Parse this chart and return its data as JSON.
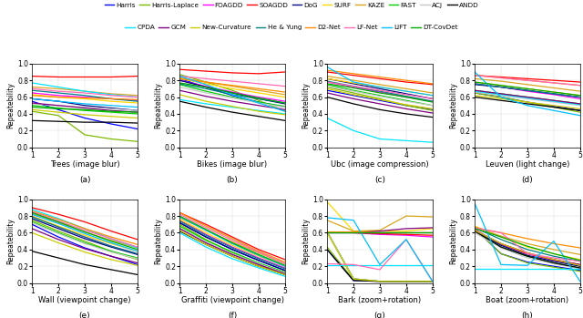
{
  "legend_entries": [
    {
      "label": "Harris",
      "color": "#0000ff",
      "ls": "-"
    },
    {
      "label": "Harris-Laplace",
      "color": "#7cba00",
      "ls": "-"
    },
    {
      "label": "FOAGDD",
      "color": "#ff00ff",
      "ls": "-"
    },
    {
      "label": "SOAGDD",
      "color": "#ff0000",
      "ls": "-"
    },
    {
      "label": "DoG",
      "color": "#000080",
      "ls": "-"
    },
    {
      "label": "SURF",
      "color": "#ffd700",
      "ls": "-"
    },
    {
      "label": "KAZE",
      "color": "#daa520",
      "ls": "-"
    },
    {
      "label": "FAST",
      "color": "#00cc00",
      "ls": "-"
    },
    {
      "label": "ACJ",
      "color": "#c8c8c8",
      "ls": "-"
    },
    {
      "label": "ANDD",
      "color": "#000000",
      "ls": "-"
    },
    {
      "label": "CPDA",
      "color": "#00e5ff",
      "ls": "-"
    },
    {
      "label": "GCM",
      "color": "#800080",
      "ls": "-"
    },
    {
      "label": "New-Curvature",
      "color": "#cccc00",
      "ls": "-"
    },
    {
      "label": "He & Yung",
      "color": "#008080",
      "ls": "-"
    },
    {
      "label": "D2-Net",
      "color": "#ff8c00",
      "ls": "-"
    },
    {
      "label": "LF-Net",
      "color": "#ff69b4",
      "ls": "-"
    },
    {
      "label": "LIFT",
      "color": "#00bfff",
      "ls": "-"
    },
    {
      "label": "DT-CovDet",
      "color": "#00aa00",
      "ls": "-"
    }
  ],
  "subplots": [
    {
      "title": "Trees (image blur)",
      "label": "(a)",
      "data": {
        "Harris": [
          0.55,
          0.45,
          0.35,
          0.28,
          0.22
        ],
        "Harris-Laplace": [
          0.43,
          0.38,
          0.15,
          0.1,
          0.07
        ],
        "FOAGDD": [
          0.65,
          0.62,
          0.6,
          0.58,
          0.56
        ],
        "SOAGDD": [
          0.85,
          0.84,
          0.84,
          0.84,
          0.85
        ],
        "DoG": [
          0.58,
          0.55,
          0.5,
          0.47,
          0.44
        ],
        "SURF": [
          0.63,
          0.6,
          0.58,
          0.55,
          0.53
        ],
        "KAZE": [
          0.72,
          0.7,
          0.67,
          0.64,
          0.62
        ],
        "FAST": [
          0.5,
          0.47,
          0.44,
          0.42,
          0.4
        ],
        "ACJ": [
          0.52,
          0.5,
          0.48,
          0.46,
          0.44
        ],
        "ANDD": [
          0.32,
          0.31,
          0.3,
          0.3,
          0.29
        ],
        "CPDA": [
          0.77,
          0.72,
          0.67,
          0.63,
          0.6
        ],
        "GCM": [
          0.53,
          0.5,
          0.47,
          0.44,
          0.42
        ],
        "New-Curvature": [
          0.45,
          0.42,
          0.39,
          0.37,
          0.35
        ],
        "He & Yung": [
          0.68,
          0.65,
          0.62,
          0.58,
          0.55
        ],
        "D2-Net": [
          0.62,
          0.6,
          0.59,
          0.58,
          0.57
        ],
        "LF-Net": [
          0.7,
          0.67,
          0.65,
          0.62,
          0.6
        ],
        "LIFT": [
          0.58,
          0.55,
          0.52,
          0.5,
          0.48
        ],
        "DT-CovDet": [
          0.48,
          0.46,
          0.45,
          0.43,
          0.42
        ]
      }
    },
    {
      "title": "Bikes (image blur)",
      "label": "(b)",
      "data": {
        "Harris": [
          0.82,
          0.72,
          0.62,
          0.54,
          0.48
        ],
        "Harris-Laplace": [
          0.87,
          0.78,
          0.68,
          0.56,
          0.43
        ],
        "FOAGDD": [
          0.8,
          0.73,
          0.66,
          0.6,
          0.55
        ],
        "SOAGDD": [
          0.93,
          0.91,
          0.89,
          0.88,
          0.9
        ],
        "DoG": [
          0.8,
          0.72,
          0.65,
          0.58,
          0.52
        ],
        "SURF": [
          0.82,
          0.76,
          0.7,
          0.65,
          0.6
        ],
        "KAZE": [
          0.83,
          0.78,
          0.73,
          0.68,
          0.63
        ],
        "FAST": [
          0.75,
          0.67,
          0.6,
          0.54,
          0.49
        ],
        "ACJ": [
          0.72,
          0.65,
          0.59,
          0.53,
          0.48
        ],
        "ANDD": [
          0.55,
          0.48,
          0.42,
          0.37,
          0.32
        ],
        "CPDA": [
          0.57,
          0.52,
          0.48,
          0.44,
          0.4
        ],
        "GCM": [
          0.68,
          0.61,
          0.55,
          0.5,
          0.45
        ],
        "New-Curvature": [
          0.63,
          0.55,
          0.49,
          0.43,
          0.39
        ],
        "He & Yung": [
          0.76,
          0.7,
          0.63,
          0.58,
          0.53
        ],
        "D2-Net": [
          0.82,
          0.78,
          0.74,
          0.7,
          0.66
        ],
        "LF-Net": [
          0.85,
          0.82,
          0.79,
          0.76,
          0.73
        ],
        "LIFT": [
          0.85,
          0.75,
          0.63,
          0.53,
          0.43
        ],
        "DT-CovDet": [
          0.77,
          0.72,
          0.65,
          0.59,
          0.53
        ]
      }
    },
    {
      "title": "Ubc (image compression)",
      "label": "(c)",
      "data": {
        "Harris": [
          0.68,
          0.62,
          0.56,
          0.5,
          0.45
        ],
        "Harris-Laplace": [
          0.72,
          0.65,
          0.58,
          0.5,
          0.44
        ],
        "FOAGDD": [
          0.78,
          0.72,
          0.66,
          0.6,
          0.55
        ],
        "SOAGDD": [
          0.9,
          0.86,
          0.82,
          0.78,
          0.75
        ],
        "DoG": [
          0.82,
          0.76,
          0.7,
          0.64,
          0.58
        ],
        "SURF": [
          0.82,
          0.77,
          0.72,
          0.67,
          0.62
        ],
        "KAZE": [
          0.85,
          0.8,
          0.75,
          0.7,
          0.65
        ],
        "FAST": [
          0.75,
          0.68,
          0.62,
          0.56,
          0.5
        ],
        "ACJ": [
          0.73,
          0.67,
          0.61,
          0.55,
          0.5
        ],
        "ANDD": [
          0.6,
          0.52,
          0.45,
          0.4,
          0.36
        ],
        "CPDA": [
          0.35,
          0.2,
          0.1,
          0.08,
          0.06
        ],
        "GCM": [
          0.65,
          0.58,
          0.52,
          0.46,
          0.41
        ],
        "New-Curvature": [
          0.7,
          0.63,
          0.57,
          0.51,
          0.46
        ],
        "He & Yung": [
          0.79,
          0.73,
          0.67,
          0.61,
          0.55
        ],
        "D2-Net": [
          0.92,
          0.88,
          0.84,
          0.8,
          0.76
        ],
        "LF-Net": [
          0.78,
          0.73,
          0.68,
          0.63,
          0.58
        ],
        "LIFT": [
          0.96,
          0.78,
          0.72,
          0.67,
          0.62
        ],
        "DT-CovDet": [
          0.76,
          0.71,
          0.65,
          0.6,
          0.54
        ]
      }
    },
    {
      "title": "Leuven (light change)",
      "label": "(d)",
      "data": {
        "Harris": [
          0.65,
          0.6,
          0.54,
          0.49,
          0.44
        ],
        "Harris-Laplace": [
          0.65,
          0.6,
          0.54,
          0.48,
          0.42
        ],
        "FOAGDD": [
          0.76,
          0.72,
          0.67,
          0.63,
          0.58
        ],
        "SOAGDD": [
          0.86,
          0.84,
          0.82,
          0.8,
          0.78
        ],
        "DoG": [
          0.75,
          0.72,
          0.68,
          0.64,
          0.6
        ],
        "SURF": [
          0.78,
          0.74,
          0.7,
          0.66,
          0.62
        ],
        "KAZE": [
          0.82,
          0.79,
          0.75,
          0.71,
          0.67
        ],
        "FAST": [
          0.68,
          0.64,
          0.6,
          0.56,
          0.52
        ],
        "ACJ": [
          0.66,
          0.62,
          0.58,
          0.54,
          0.5
        ],
        "ANDD": [
          0.6,
          0.56,
          0.52,
          0.48,
          0.44
        ],
        "CPDA": [
          0.67,
          0.63,
          0.59,
          0.55,
          0.51
        ],
        "GCM": [
          0.68,
          0.64,
          0.6,
          0.56,
          0.52
        ],
        "New-Curvature": [
          0.62,
          0.58,
          0.54,
          0.5,
          0.46
        ],
        "He & Yung": [
          0.76,
          0.72,
          0.68,
          0.64,
          0.6
        ],
        "D2-Net": [
          0.86,
          0.83,
          0.8,
          0.77,
          0.74
        ],
        "LF-Net": [
          0.86,
          0.83,
          0.8,
          0.77,
          0.74
        ],
        "LIFT": [
          0.9,
          0.6,
          0.5,
          0.44,
          0.38
        ],
        "DT-CovDet": [
          0.78,
          0.74,
          0.7,
          0.66,
          0.62
        ]
      }
    },
    {
      "title": "Wall (viewpoint change)",
      "label": "(e)",
      "data": {
        "Harris": [
          0.7,
          0.55,
          0.42,
          0.32,
          0.22
        ],
        "Harris-Laplace": [
          0.75,
          0.62,
          0.5,
          0.38,
          0.28
        ],
        "FOAGDD": [
          0.8,
          0.67,
          0.55,
          0.44,
          0.35
        ],
        "SOAGDD": [
          0.9,
          0.82,
          0.73,
          0.62,
          0.52
        ],
        "DoG": [
          0.77,
          0.65,
          0.53,
          0.43,
          0.34
        ],
        "SURF": [
          0.8,
          0.68,
          0.57,
          0.47,
          0.38
        ],
        "KAZE": [
          0.83,
          0.72,
          0.61,
          0.51,
          0.42
        ],
        "FAST": [
          0.73,
          0.6,
          0.48,
          0.38,
          0.3
        ],
        "ACJ": [
          0.72,
          0.59,
          0.47,
          0.37,
          0.29
        ],
        "ANDD": [
          0.38,
          0.3,
          0.22,
          0.16,
          0.1
        ],
        "CPDA": [
          0.88,
          0.77,
          0.65,
          0.53,
          0.42
        ],
        "GCM": [
          0.65,
          0.52,
          0.41,
          0.32,
          0.24
        ],
        "New-Curvature": [
          0.6,
          0.48,
          0.37,
          0.28,
          0.21
        ],
        "He & Yung": [
          0.79,
          0.67,
          0.55,
          0.44,
          0.35
        ],
        "D2-Net": [
          0.86,
          0.76,
          0.65,
          0.55,
          0.46
        ],
        "LF-Net": [
          0.85,
          0.74,
          0.63,
          0.53,
          0.43
        ],
        "LIFT": [
          0.82,
          0.71,
          0.59,
          0.48,
          0.38
        ],
        "DT-CovDet": [
          0.84,
          0.73,
          0.61,
          0.5,
          0.4
        ]
      }
    },
    {
      "title": "Graffiti (viewpoint change)",
      "label": "(f)",
      "data": {
        "Harris": [
          0.72,
          0.55,
          0.4,
          0.27,
          0.15
        ],
        "Harris-Laplace": [
          0.7,
          0.52,
          0.36,
          0.22,
          0.1
        ],
        "FOAGDD": [
          0.75,
          0.58,
          0.43,
          0.3,
          0.18
        ],
        "SOAGDD": [
          0.84,
          0.7,
          0.55,
          0.4,
          0.28
        ],
        "DoG": [
          0.72,
          0.55,
          0.4,
          0.27,
          0.15
        ],
        "SURF": [
          0.76,
          0.6,
          0.45,
          0.32,
          0.2
        ],
        "KAZE": [
          0.78,
          0.63,
          0.49,
          0.36,
          0.23
        ],
        "FAST": [
          0.68,
          0.51,
          0.37,
          0.24,
          0.13
        ],
        "ACJ": [
          0.66,
          0.49,
          0.35,
          0.23,
          0.12
        ],
        "ANDD": [
          0.62,
          0.46,
          0.32,
          0.2,
          0.1
        ],
        "CPDA": [
          0.6,
          0.43,
          0.29,
          0.18,
          0.08
        ],
        "GCM": [
          0.65,
          0.48,
          0.34,
          0.22,
          0.11
        ],
        "New-Curvature": [
          0.63,
          0.46,
          0.32,
          0.2,
          0.1
        ],
        "He & Yung": [
          0.74,
          0.57,
          0.42,
          0.29,
          0.17
        ],
        "D2-Net": [
          0.84,
          0.68,
          0.53,
          0.38,
          0.25
        ],
        "LF-Net": [
          0.82,
          0.66,
          0.51,
          0.37,
          0.23
        ],
        "LIFT": [
          0.79,
          0.63,
          0.47,
          0.33,
          0.2
        ],
        "DT-CovDet": [
          0.8,
          0.64,
          0.48,
          0.34,
          0.21
        ]
      }
    },
    {
      "title": "Bark (zoom+rotation)",
      "label": "(g)",
      "data": {
        "Harris": [
          0.4,
          0.03,
          0.02,
          0.02,
          0.02
        ],
        "Harris-Laplace": [
          0.43,
          0.04,
          0.02,
          0.02,
          0.02
        ],
        "FOAGDD": [
          0.6,
          0.6,
          0.58,
          0.57,
          0.55
        ],
        "SOAGDD": [
          0.61,
          0.6,
          0.59,
          0.58,
          0.57
        ],
        "DoG": [
          0.61,
          0.05,
          0.02,
          0.02,
          0.02
        ],
        "SURF": [
          0.97,
          0.62,
          0.62,
          0.62,
          0.65
        ],
        "KAZE": [
          0.75,
          0.62,
          0.63,
          0.8,
          0.79
        ],
        "FAST": [
          0.61,
          0.05,
          0.02,
          0.02,
          0.02
        ],
        "ACJ": [
          0.61,
          0.05,
          0.02,
          0.02,
          0.02
        ],
        "ANDD": [
          0.4,
          0.03,
          0.02,
          0.02,
          0.02
        ],
        "CPDA": [
          0.21,
          0.21,
          0.21,
          0.21,
          0.21
        ],
        "GCM": [
          0.6,
          0.6,
          0.62,
          0.65,
          0.66
        ],
        "New-Curvature": [
          0.6,
          0.05,
          0.02,
          0.02,
          0.02
        ],
        "He & Yung": [
          0.6,
          0.6,
          0.6,
          0.6,
          0.6
        ],
        "D2-Net": [
          0.61,
          0.61,
          0.6,
          0.6,
          0.6
        ],
        "LF-Net": [
          0.23,
          0.22,
          0.16,
          0.52,
          0.02
        ],
        "LIFT": [
          0.78,
          0.75,
          0.22,
          0.52,
          0.02
        ],
        "DT-CovDet": [
          0.6,
          0.6,
          0.6,
          0.6,
          0.6
        ]
      }
    },
    {
      "title": "Boat (zoom+rotation)",
      "label": "(h)",
      "data": {
        "Harris": [
          0.65,
          0.35,
          0.25,
          0.2,
          0.15
        ],
        "Harris-Laplace": [
          0.65,
          0.35,
          0.24,
          0.19,
          0.14
        ],
        "FOAGDD": [
          0.64,
          0.46,
          0.35,
          0.27,
          0.21
        ],
        "SOAGDD": [
          0.62,
          0.47,
          0.35,
          0.28,
          0.22
        ],
        "DoG": [
          0.62,
          0.45,
          0.33,
          0.26,
          0.2
        ],
        "SURF": [
          0.68,
          0.55,
          0.43,
          0.35,
          0.28
        ],
        "KAZE": [
          0.67,
          0.56,
          0.47,
          0.4,
          0.34
        ],
        "FAST": [
          0.62,
          0.43,
          0.32,
          0.24,
          0.18
        ],
        "ACJ": [
          0.6,
          0.42,
          0.3,
          0.23,
          0.17
        ],
        "ANDD": [
          0.62,
          0.43,
          0.32,
          0.24,
          0.18
        ],
        "CPDA": [
          0.17,
          0.17,
          0.17,
          0.17,
          0.17
        ],
        "GCM": [
          0.63,
          0.47,
          0.36,
          0.28,
          0.22
        ],
        "New-Curvature": [
          0.63,
          0.47,
          0.36,
          0.28,
          0.21
        ],
        "He & Yung": [
          0.66,
          0.52,
          0.4,
          0.32,
          0.26
        ],
        "D2-Net": [
          0.66,
          0.6,
          0.53,
          0.47,
          0.42
        ],
        "LF-Net": [
          0.66,
          0.6,
          0.35,
          0.3,
          0.26
        ],
        "LIFT": [
          0.95,
          0.22,
          0.21,
          0.5,
          0.02
        ],
        "DT-CovDet": [
          0.65,
          0.55,
          0.44,
          0.35,
          0.27
        ]
      }
    }
  ],
  "fig_width": 6.4,
  "fig_height": 3.49,
  "dpi": 100
}
